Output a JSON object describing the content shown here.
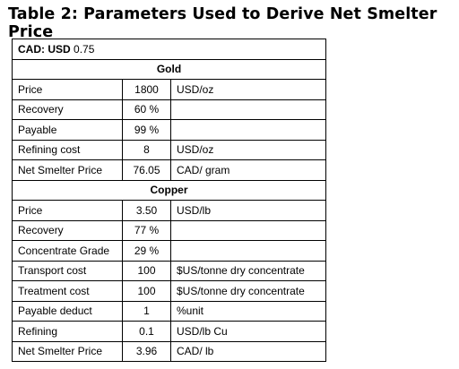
{
  "title": "Table 2: Parameters Used to Derive Net Smelter Price",
  "table": {
    "exchange": {
      "label": "CAD: USD",
      "value": "0.75"
    },
    "sections": [
      {
        "name": "Gold",
        "rows": [
          [
            "Price",
            "1800",
            "USD/oz"
          ],
          [
            "Recovery",
            "60 %"
          ],
          [
            "Payable",
            "99 %"
          ],
          [
            "Refining cost",
            "8",
            "USD/oz"
          ],
          [
            "Net Smelter Price",
            "76.05",
            "CAD/ gram"
          ]
        ]
      },
      {
        "name": "Copper",
        "rows": [
          [
            "Price",
            "3.50",
            "USD/lb"
          ],
          [
            "Recovery",
            "77 %"
          ],
          [
            "Concentrate Grade",
            "29 %"
          ],
          [
            "Transport cost",
            "100",
            "$US/tonne dry concentrate"
          ],
          [
            "Treatment cost",
            "100",
            "$US/tonne dry concentrate"
          ],
          [
            "Payable deduct",
            "1",
            "%unit"
          ],
          [
            "Refining",
            "0.1",
            "USD/lb Cu"
          ],
          [
            "Net Smelter Price",
            "3.96",
            "CAD/ lb"
          ]
        ]
      }
    ]
  }
}
